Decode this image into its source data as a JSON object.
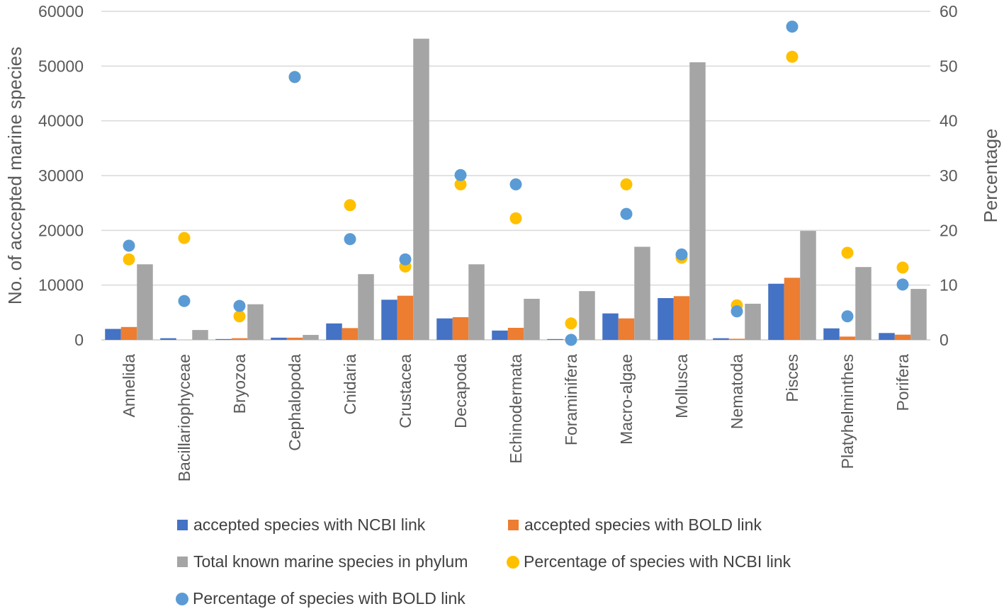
{
  "chart_data": {
    "type": "bar",
    "title": "",
    "xlabel": "",
    "ylabel": "No. of  accepted marine species",
    "y2label": "Percentage",
    "ylim": [
      0,
      60000
    ],
    "y2lim": [
      0,
      60
    ],
    "yticks": [
      "0",
      "10000",
      "20000",
      "30000",
      "40000",
      "50000",
      "60000"
    ],
    "y2ticks": [
      "0",
      "10",
      "20",
      "30",
      "40",
      "50",
      "60"
    ],
    "grid": true,
    "legend_position": "bottom",
    "categories": [
      "Annelida",
      "Bacillariophyceae",
      "Bryozoa",
      "Cephalopoda",
      "Cnidaria",
      "Crustacea",
      "Decapoda",
      "Echinodermata",
      "Foraminifera",
      "Macro-algae",
      "Mollusca",
      "Nematoda",
      "Pisces",
      "Platyhelminthes",
      "Porifera"
    ],
    "series": [
      {
        "name": "accepted species with NCBI link",
        "kind": "bar",
        "axis": "left",
        "color": "#4472C4",
        "values": [
          2000,
          300,
          150,
          400,
          3000,
          7330,
          3920,
          1700,
          150,
          4830,
          7630,
          300,
          10250,
          2100,
          1250
        ]
      },
      {
        "name": "accepted species with BOLD link",
        "kind": "bar",
        "axis": "left",
        "color": "#ED7D31",
        "values": [
          2350,
          0,
          300,
          400,
          2150,
          8060,
          4140,
          2200,
          50,
          3920,
          7980,
          200,
          11340,
          600,
          950
        ]
      },
      {
        "name": "Total known marine species in phylum",
        "kind": "bar",
        "axis": "left",
        "color": "#A5A5A5",
        "values": [
          13800,
          1800,
          6500,
          900,
          12000,
          55000,
          13800,
          7500,
          8900,
          17000,
          50700,
          6600,
          19900,
          13300,
          9300
        ]
      },
      {
        "name": "Percentage of species with NCBI link",
        "kind": "scatter",
        "axis": "right",
        "color": "#FFC000",
        "values": [
          14.7,
          18.6,
          4.3,
          48,
          24.6,
          13.4,
          28.4,
          22.2,
          3,
          28.4,
          15,
          6.3,
          51.7,
          15.9,
          13.2
        ]
      },
      {
        "name": "Percentage of species with BOLD link",
        "kind": "scatter",
        "axis": "right",
        "color": "#5B9BD5",
        "values": [
          17.2,
          7.1,
          6.2,
          48,
          18.4,
          14.7,
          30.1,
          28.4,
          0,
          23,
          15.6,
          5.2,
          57.2,
          4.3,
          10.1
        ]
      }
    ]
  }
}
